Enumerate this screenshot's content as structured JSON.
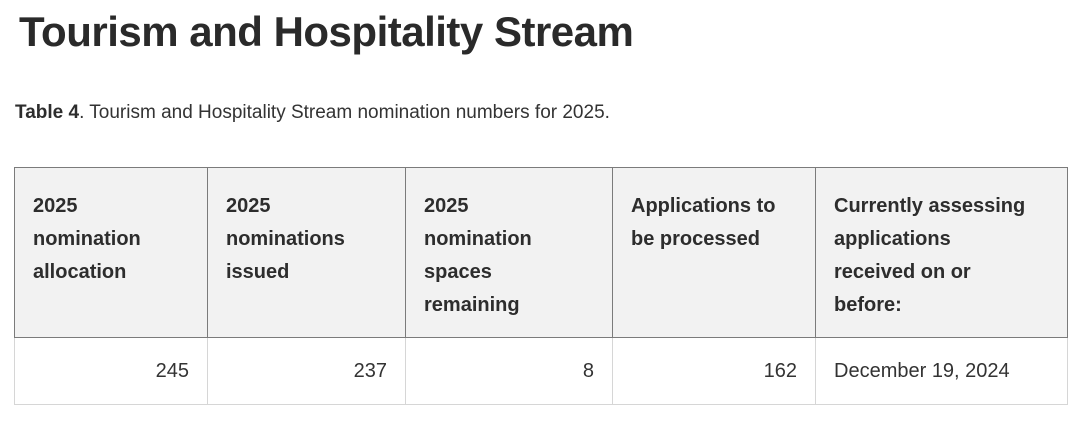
{
  "heading": "Tourism and Hospitality Stream",
  "caption": {
    "label": "Table 4",
    "rest": ". Tourism and Hospitality Stream nomination numbers for 2025."
  },
  "table": {
    "headers": [
      "2025\nnomination\nallocation",
      "2025\nnominations\nissued",
      "2025\nnomination\nspaces\nremaining",
      "Applications to\nbe processed",
      "Currently assessing\napplications\nreceived on or\nbefore:"
    ],
    "row": [
      "245",
      "237",
      "8",
      "162",
      "December 19, 2024"
    ]
  },
  "colors": {
    "header_background": "#f2f2f2",
    "border_dark": "#7b7b7b",
    "border_light": "#d6d6d6",
    "heading_text": "#2a2a2a",
    "body_text": "#333333"
  }
}
